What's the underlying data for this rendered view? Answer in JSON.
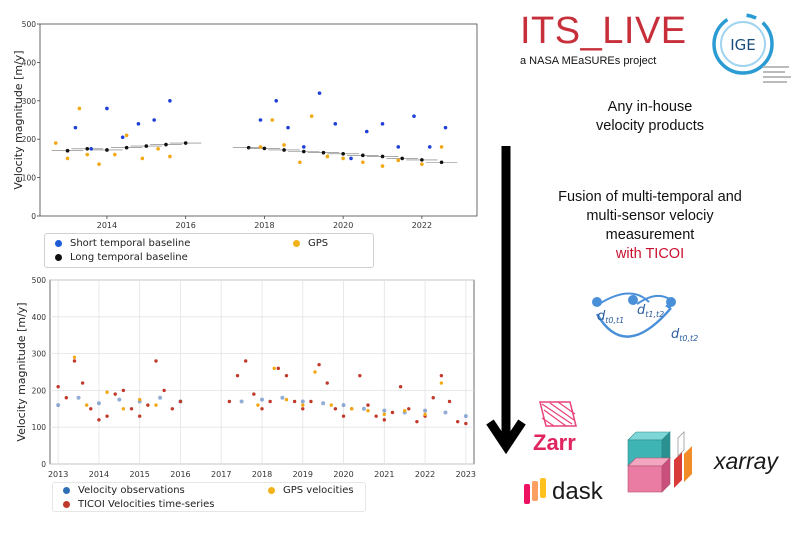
{
  "top_chart": {
    "ylabel": "Velocity magnitude [m/y]",
    "y_ticks": [
      "0",
      "100",
      "200",
      "300",
      "400",
      "500"
    ],
    "x_ticks": [
      "2014",
      "2016",
      "2018",
      "2020",
      "2022"
    ],
    "legend": {
      "short": "Short temporal baseline",
      "long": "Long temporal baseline",
      "gps": "GPS"
    }
  },
  "bottom_chart": {
    "ylabel": "Velocity magnitude [m/y]",
    "y_ticks": [
      "0",
      "100",
      "200",
      "300",
      "400",
      "500"
    ],
    "x_ticks": [
      "2013",
      "2014",
      "2015",
      "2016",
      "2017",
      "2018",
      "2019",
      "2020",
      "2021",
      "2022",
      "2023"
    ],
    "legend": {
      "obs": "Velocity observations",
      "gps": "GPS velocities",
      "ticoi": "TICOI Velocities time-series"
    }
  },
  "chart_data": [
    {
      "type": "scatter",
      "ylabel": "Velocity magnitude [m/y]",
      "xlim": [
        2012.3,
        2023.4
      ],
      "ylim": [
        0,
        500
      ],
      "series": [
        {
          "name": "Short temporal baseline",
          "color": "#1f3fd6",
          "x": [
            2013.2,
            2013.6,
            2014.0,
            2014.4,
            2014.8,
            2015.2,
            2015.6,
            2017.9,
            2018.3,
            2018.6,
            2019.0,
            2019.4,
            2019.8,
            2020.2,
            2020.6,
            2021.0,
            2021.4,
            2021.8,
            2022.2,
            2022.6
          ],
          "y": [
            230,
            175,
            280,
            205,
            240,
            250,
            300,
            250,
            300,
            230,
            180,
            320,
            240,
            150,
            220,
            240,
            180,
            260,
            180,
            230
          ]
        },
        {
          "name": "Long temporal baseline",
          "color": "#111111",
          "x": [
            2013.0,
            2013.5,
            2014.0,
            2014.5,
            2015.0,
            2015.5,
            2016.0,
            2017.6,
            2018.0,
            2018.5,
            2019.0,
            2019.5,
            2020.0,
            2020.5,
            2021.0,
            2021.5,
            2022.0,
            2022.5
          ],
          "y": [
            170,
            175,
            172,
            178,
            182,
            186,
            190,
            178,
            176,
            172,
            168,
            165,
            162,
            158,
            155,
            150,
            146,
            140
          ]
        },
        {
          "name": "GPS",
          "color": "#f2a812",
          "x": [
            2012.7,
            2013.0,
            2013.3,
            2013.5,
            2013.8,
            2014.2,
            2014.5,
            2014.9,
            2015.3,
            2015.6,
            2017.9,
            2018.2,
            2018.5,
            2018.9,
            2019.2,
            2019.6,
            2020.0,
            2020.5,
            2021.0,
            2021.4,
            2022.0,
            2022.5
          ],
          "y": [
            190,
            150,
            280,
            160,
            135,
            160,
            210,
            150,
            175,
            155,
            180,
            250,
            185,
            140,
            260,
            155,
            150,
            140,
            130,
            145,
            135,
            180
          ]
        }
      ]
    },
    {
      "type": "scatter",
      "ylabel": "Velocity magnitude [m/y]",
      "xlim": [
        2012.8,
        2023.2
      ],
      "ylim": [
        0,
        500
      ],
      "series": [
        {
          "name": "Velocity observations",
          "color": "#3a6bb5",
          "x": [
            2013.0,
            2013.5,
            2014.0,
            2014.5,
            2015.0,
            2015.5,
            2016.0,
            2017.5,
            2018.0,
            2018.5,
            2019.0,
            2019.5,
            2020.0,
            2020.5,
            2021.0,
            2021.5,
            2022.0,
            2022.5,
            2023.0
          ],
          "y": [
            160,
            180,
            165,
            175,
            170,
            180,
            170,
            170,
            175,
            180,
            170,
            165,
            160,
            150,
            145,
            140,
            145,
            140,
            130
          ]
        },
        {
          "name": "GPS velocities",
          "color": "#f2a812",
          "x": [
            2013.4,
            2013.7,
            2014.2,
            2014.6,
            2015.0,
            2015.4,
            2017.9,
            2018.3,
            2018.6,
            2019.0,
            2019.3,
            2019.7,
            2020.2,
            2020.6,
            2021.0,
            2021.5,
            2022.0,
            2022.4
          ],
          "y": [
            290,
            160,
            195,
            150,
            175,
            160,
            160,
            260,
            175,
            160,
            250,
            160,
            150,
            145,
            135,
            145,
            135,
            220
          ]
        },
        {
          "name": "TICOI Velocities time-series",
          "color": "#c0392b",
          "x": [
            2013.0,
            2013.2,
            2013.4,
            2013.6,
            2013.8,
            2014.0,
            2014.2,
            2014.4,
            2014.6,
            2014.8,
            2015.0,
            2015.2,
            2015.4,
            2015.6,
            2015.8,
            2016.0,
            2017.2,
            2017.4,
            2017.6,
            2017.8,
            2018.0,
            2018.2,
            2018.4,
            2018.6,
            2018.8,
            2019.0,
            2019.2,
            2019.4,
            2019.6,
            2019.8,
            2020.0,
            2020.2,
            2020.4,
            2020.6,
            2020.8,
            2021.0,
            2021.2,
            2021.4,
            2021.6,
            2021.8,
            2022.0,
            2022.2,
            2022.4,
            2022.6,
            2022.8,
            2023.0
          ],
          "y": [
            210,
            180,
            280,
            220,
            150,
            120,
            130,
            190,
            200,
            150,
            130,
            160,
            280,
            200,
            150,
            170,
            170,
            240,
            280,
            190,
            150,
            170,
            260,
            240,
            170,
            150,
            170,
            270,
            220,
            150,
            130,
            150,
            240,
            160,
            130,
            120,
            140,
            210,
            150,
            115,
            130,
            180,
            240,
            170,
            115,
            110
          ]
        }
      ]
    }
  ],
  "logos": {
    "its_live_title": "ITS_LIVE",
    "its_live_subtitle": "a NASA MEaSUREs project",
    "ige_text": "IGE",
    "zarr": "Zarr",
    "dask": "dask",
    "xarray": "xarray"
  },
  "captions": {
    "inhouse": [
      "Any in-house",
      "velocity products"
    ],
    "fusion": [
      "Fusion of multi-temporal and",
      "multi-sensor velociy",
      "measurement"
    ],
    "ticoi": "with TICOI"
  },
  "formula": {
    "d": "d",
    "sub1": "t0,t1",
    "sub2": "t1,t2",
    "sub3": "t0,t2"
  }
}
